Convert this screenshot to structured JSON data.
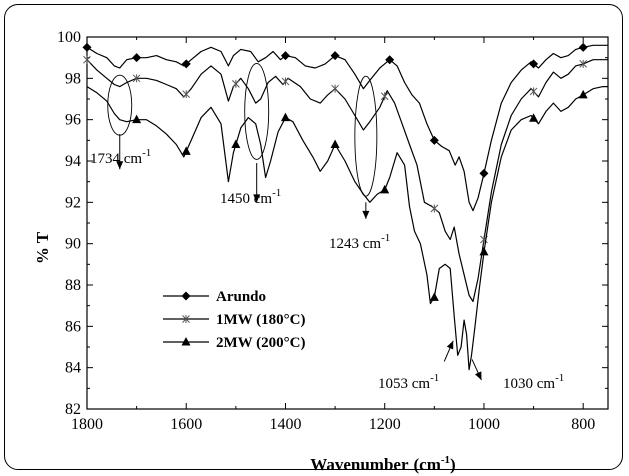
{
  "chart_data": {
    "type": "line",
    "xlabel": "Wavenumber",
    "xlabel_unit": "(cm",
    "xlabel_unit_exp": "-1",
    "xlabel_unit_close": ")",
    "ylabel": "% T",
    "xlim": [
      1800,
      750
    ],
    "ylim": [
      82,
      100
    ],
    "x_ticks": [
      1800,
      1600,
      1400,
      1200,
      1000,
      800
    ],
    "y_ticks": [
      82,
      84,
      86,
      88,
      90,
      92,
      94,
      96,
      98,
      100
    ],
    "grid": false,
    "legend_position": "bottom-left",
    "series": [
      {
        "name": "Arundo",
        "marker": "diamond",
        "points": [
          [
            1800,
            99.5
          ],
          [
            1780,
            99.2
          ],
          [
            1760,
            99.0
          ],
          [
            1745,
            98.6
          ],
          [
            1734,
            98.5
          ],
          [
            1720,
            98.9
          ],
          [
            1700,
            99.0
          ],
          [
            1680,
            99.0
          ],
          [
            1660,
            99.1
          ],
          [
            1640,
            98.9
          ],
          [
            1620,
            98.8
          ],
          [
            1605,
            98.6
          ],
          [
            1590,
            98.9
          ],
          [
            1570,
            99.3
          ],
          [
            1550,
            99.5
          ],
          [
            1530,
            99.3
          ],
          [
            1515,
            98.6
          ],
          [
            1505,
            99.1
          ],
          [
            1490,
            99.4
          ],
          [
            1470,
            99.3
          ],
          [
            1455,
            98.8
          ],
          [
            1440,
            99.0
          ],
          [
            1425,
            99.3
          ],
          [
            1410,
            98.9
          ],
          [
            1400,
            99.1
          ],
          [
            1380,
            99.0
          ],
          [
            1360,
            98.6
          ],
          [
            1340,
            98.5
          ],
          [
            1320,
            98.7
          ],
          [
            1300,
            99.1
          ],
          [
            1280,
            98.9
          ],
          [
            1260,
            98.2
          ],
          [
            1243,
            97.5
          ],
          [
            1230,
            97.9
          ],
          [
            1210,
            98.5
          ],
          [
            1190,
            98.9
          ],
          [
            1175,
            98.6
          ],
          [
            1160,
            97.8
          ],
          [
            1145,
            97.2
          ],
          [
            1130,
            96.8
          ],
          [
            1115,
            95.8
          ],
          [
            1100,
            95.0
          ],
          [
            1085,
            94.7
          ],
          [
            1070,
            94.5
          ],
          [
            1058,
            93.8
          ],
          [
            1050,
            94.2
          ],
          [
            1040,
            93.5
          ],
          [
            1030,
            92.0
          ],
          [
            1022,
            91.6
          ],
          [
            1012,
            92.2
          ],
          [
            1000,
            93.4
          ],
          [
            985,
            95.0
          ],
          [
            965,
            96.8
          ],
          [
            945,
            97.8
          ],
          [
            925,
            98.4
          ],
          [
            905,
            98.8
          ],
          [
            890,
            98.5
          ],
          [
            875,
            98.9
          ],
          [
            860,
            99.2
          ],
          [
            845,
            99.0
          ],
          [
            830,
            99.1
          ],
          [
            815,
            99.4
          ],
          [
            800,
            99.5
          ],
          [
            780,
            99.6
          ],
          [
            760,
            99.6
          ],
          [
            750,
            99.6
          ]
        ],
        "marker_x": [
          1800,
          1700,
          1600,
          1400,
          1300,
          1190,
          1100,
          1000,
          900,
          800
        ]
      },
      {
        "name": "1MW (180°C)",
        "marker": "x",
        "points": [
          [
            1800,
            98.9
          ],
          [
            1780,
            98.4
          ],
          [
            1760,
            98.0
          ],
          [
            1745,
            97.7
          ],
          [
            1734,
            97.6
          ],
          [
            1720,
            97.8
          ],
          [
            1700,
            98.0
          ],
          [
            1680,
            98.0
          ],
          [
            1660,
            97.9
          ],
          [
            1640,
            97.7
          ],
          [
            1620,
            97.5
          ],
          [
            1605,
            97.1
          ],
          [
            1590,
            97.5
          ],
          [
            1570,
            98.2
          ],
          [
            1550,
            98.6
          ],
          [
            1530,
            98.2
          ],
          [
            1515,
            96.9
          ],
          [
            1505,
            97.6
          ],
          [
            1490,
            98.0
          ],
          [
            1475,
            97.5
          ],
          [
            1460,
            96.8
          ],
          [
            1450,
            97.0
          ],
          [
            1435,
            97.8
          ],
          [
            1420,
            98.1
          ],
          [
            1405,
            97.7
          ],
          [
            1395,
            98.0
          ],
          [
            1370,
            97.6
          ],
          [
            1350,
            97.0
          ],
          [
            1330,
            96.8
          ],
          [
            1315,
            97.2
          ],
          [
            1300,
            97.5
          ],
          [
            1280,
            97.0
          ],
          [
            1260,
            96.2
          ],
          [
            1243,
            95.5
          ],
          [
            1230,
            95.9
          ],
          [
            1210,
            96.6
          ],
          [
            1195,
            97.4
          ],
          [
            1180,
            96.8
          ],
          [
            1165,
            95.8
          ],
          [
            1150,
            94.8
          ],
          [
            1135,
            93.8
          ],
          [
            1120,
            92.0
          ],
          [
            1105,
            91.8
          ],
          [
            1090,
            91.5
          ],
          [
            1078,
            90.6
          ],
          [
            1068,
            90.2
          ],
          [
            1060,
            90.8
          ],
          [
            1050,
            89.5
          ],
          [
            1040,
            88.5
          ],
          [
            1030,
            87.5
          ],
          [
            1022,
            87.2
          ],
          [
            1012,
            88.3
          ],
          [
            1000,
            90.2
          ],
          [
            985,
            92.5
          ],
          [
            965,
            94.8
          ],
          [
            945,
            96.2
          ],
          [
            925,
            97.0
          ],
          [
            905,
            97.5
          ],
          [
            890,
            97.1
          ],
          [
            875,
            97.8
          ],
          [
            860,
            98.3
          ],
          [
            845,
            98.0
          ],
          [
            830,
            98.2
          ],
          [
            815,
            98.6
          ],
          [
            800,
            98.7
          ],
          [
            780,
            98.9
          ],
          [
            760,
            98.9
          ],
          [
            750,
            98.9
          ]
        ],
        "marker_x": [
          1800,
          1700,
          1600,
          1500,
          1400,
          1300,
          1200,
          1100,
          1000,
          900,
          800
        ]
      },
      {
        "name": "2MW (200°C)",
        "marker": "triangle",
        "points": [
          [
            1800,
            97.6
          ],
          [
            1780,
            97.3
          ],
          [
            1760,
            96.9
          ],
          [
            1745,
            96.3
          ],
          [
            1734,
            96.0
          ],
          [
            1720,
            95.9
          ],
          [
            1700,
            96.0
          ],
          [
            1680,
            96.0
          ],
          [
            1660,
            95.7
          ],
          [
            1640,
            95.3
          ],
          [
            1620,
            94.8
          ],
          [
            1605,
            94.2
          ],
          [
            1590,
            95.0
          ],
          [
            1570,
            96.1
          ],
          [
            1550,
            96.6
          ],
          [
            1530,
            95.8
          ],
          [
            1515,
            93.0
          ],
          [
            1505,
            94.4
          ],
          [
            1490,
            95.6
          ],
          [
            1475,
            96.1
          ],
          [
            1460,
            95.8
          ],
          [
            1450,
            94.8
          ],
          [
            1440,
            93.2
          ],
          [
            1430,
            94.0
          ],
          [
            1415,
            95.4
          ],
          [
            1400,
            96.1
          ],
          [
            1385,
            95.9
          ],
          [
            1365,
            95.0
          ],
          [
            1345,
            94.2
          ],
          [
            1330,
            93.5
          ],
          [
            1315,
            94.0
          ],
          [
            1300,
            94.8
          ],
          [
            1280,
            94.0
          ],
          [
            1260,
            93.0
          ],
          [
            1243,
            92.4
          ],
          [
            1230,
            92.0
          ],
          [
            1215,
            92.4
          ],
          [
            1200,
            92.6
          ],
          [
            1190,
            93.2
          ],
          [
            1175,
            94.4
          ],
          [
            1160,
            93.8
          ],
          [
            1150,
            91.8
          ],
          [
            1140,
            90.6
          ],
          [
            1128,
            90.0
          ],
          [
            1115,
            88.5
          ],
          [
            1108,
            87.1
          ],
          [
            1100,
            87.4
          ],
          [
            1090,
            88.8
          ],
          [
            1078,
            89.0
          ],
          [
            1068,
            88.8
          ],
          [
            1060,
            86.5
          ],
          [
            1053,
            84.6
          ],
          [
            1046,
            85.0
          ],
          [
            1040,
            86.3
          ],
          [
            1035,
            85.6
          ],
          [
            1030,
            83.9
          ],
          [
            1025,
            84.6
          ],
          [
            1018,
            86.0
          ],
          [
            1010,
            87.7
          ],
          [
            1000,
            89.6
          ],
          [
            985,
            92.0
          ],
          [
            965,
            94.2
          ],
          [
            945,
            95.5
          ],
          [
            925,
            96.0
          ],
          [
            905,
            96.2
          ],
          [
            890,
            95.8
          ],
          [
            875,
            96.4
          ],
          [
            860,
            96.8
          ],
          [
            845,
            96.4
          ],
          [
            830,
            96.6
          ],
          [
            815,
            97.0
          ],
          [
            800,
            97.2
          ],
          [
            780,
            97.5
          ],
          [
            760,
            97.6
          ],
          [
            750,
            97.6
          ]
        ],
        "marker_x": [
          1700,
          1600,
          1500,
          1400,
          1300,
          1200,
          1100,
          1000,
          900,
          800
        ]
      }
    ],
    "annotations": [
      {
        "value": "1734",
        "unit": "cm",
        "exp": "-1"
      },
      {
        "value": "1450",
        "unit": "cm",
        "exp": "-1"
      },
      {
        "value": "1243",
        "unit": "cm",
        "exp": "-1"
      },
      {
        "value": "1053",
        "unit": "cm",
        "exp": "-1"
      },
      {
        "value": "1030",
        "unit": "cm",
        "exp": "-1"
      }
    ]
  }
}
